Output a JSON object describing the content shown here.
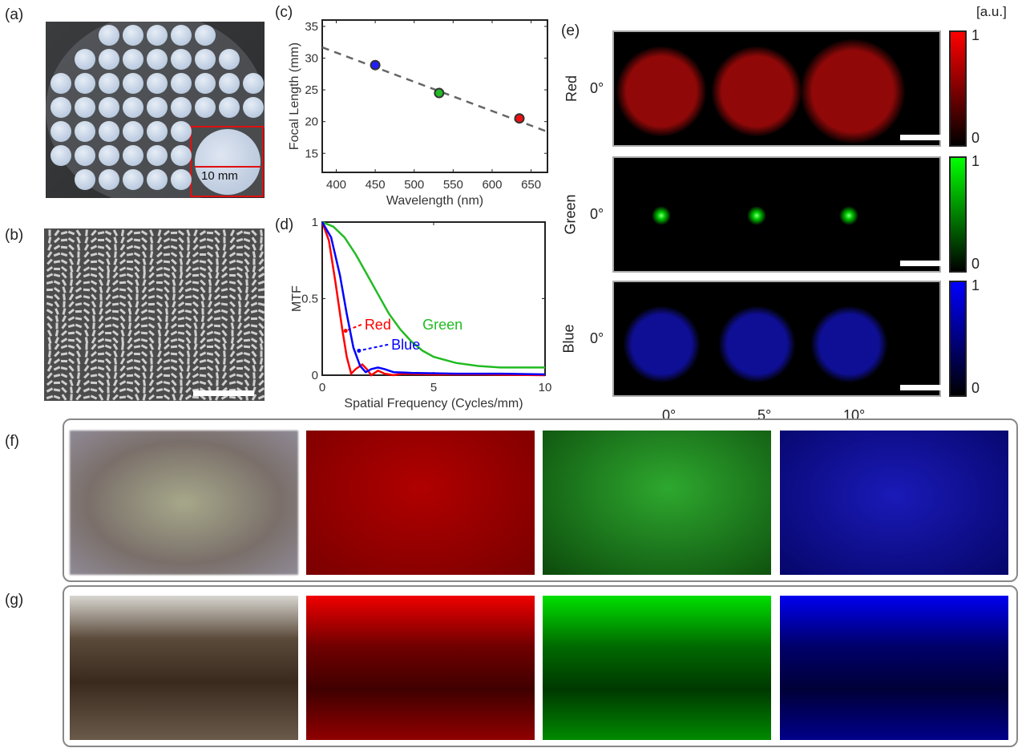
{
  "panel_labels": {
    "a": "(a)",
    "b": "(b)",
    "c": "(c)",
    "d": "(d)",
    "e": "(e)",
    "f": "(f)",
    "g": "(g)"
  },
  "panel_a": {
    "scale_text": "10 mm"
  },
  "panel_e": {
    "unit": "[a.u.]",
    "rows": [
      {
        "label": "Red",
        "angle": "0°",
        "color": "#ff0000",
        "cb_max": "1",
        "cb_min": "0"
      },
      {
        "label": "Green",
        "angle": "0°",
        "color": "#00ff00",
        "cb_max": "1",
        "cb_min": "0"
      },
      {
        "label": "Blue",
        "angle": "0°",
        "color": "#0000ff",
        "cb_max": "1",
        "cb_min": "0"
      }
    ],
    "columns": [
      "0°",
      "5°",
      "10°"
    ]
  },
  "chart_data": [
    {
      "type": "scatter",
      "title": "",
      "xlabel": "Wavelength (nm)",
      "ylabel": "Focal Length (mm)",
      "xlim": [
        382,
        671
      ],
      "ylim": [
        12,
        36
      ],
      "xticks": [
        "400",
        "450",
        "500",
        "550",
        "600",
        "650"
      ],
      "yticks": [
        "15",
        "20",
        "25",
        "30",
        "35"
      ],
      "points": [
        {
          "x": 450,
          "y": 28.9,
          "color": "#1f1fff"
        },
        {
          "x": 532,
          "y": 24.5,
          "color": "#22bb22"
        },
        {
          "x": 635,
          "y": 20.5,
          "color": "#ee1111"
        }
      ],
      "fit_line": {
        "x": [
          382,
          671
        ],
        "y": [
          31.7,
          18.4
        ],
        "style": "dashed"
      }
    },
    {
      "type": "line",
      "title": "",
      "xlabel": "Spatial Frequency (Cycles/mm)",
      "ylabel": "MTF",
      "xlim": [
        0,
        10
      ],
      "ylim": [
        0,
        1
      ],
      "xticks": [
        "0",
        "5",
        "10"
      ],
      "yticks": [
        "0",
        "0.5",
        "1"
      ],
      "series": [
        {
          "name": "Red",
          "color": "#ff0000",
          "x": [
            0,
            0.3,
            0.6,
            0.9,
            1.1,
            1.3,
            1.5,
            1.8,
            2.0,
            2.2,
            2.5,
            2.8,
            3.2,
            3.6,
            5,
            7,
            10
          ],
          "y": [
            1,
            0.88,
            0.6,
            0.3,
            0.12,
            0.01,
            0.04,
            0.07,
            0.04,
            0.0,
            0.03,
            0.01,
            0.0,
            0.01,
            0.005,
            0.005,
            0
          ],
          "label_pos": [
            1.9,
            0.33
          ]
        },
        {
          "name": "Green",
          "color": "#22bb22",
          "x": [
            0,
            0.5,
            1,
            1.5,
            2,
            2.5,
            3,
            3.5,
            4,
            4.5,
            5,
            6,
            7,
            8,
            9,
            10
          ],
          "y": [
            1,
            0.97,
            0.9,
            0.79,
            0.66,
            0.53,
            0.4,
            0.3,
            0.22,
            0.16,
            0.12,
            0.08,
            0.06,
            0.05,
            0.05,
            0.05
          ],
          "label_pos": [
            4.5,
            0.33
          ]
        },
        {
          "name": "Blue",
          "color": "#0000ff",
          "x": [
            0,
            0.4,
            0.8,
            1.1,
            1.4,
            1.7,
            1.95,
            2.2,
            2.5,
            2.8,
            3.2,
            4,
            6,
            8,
            10
          ],
          "y": [
            1,
            0.9,
            0.65,
            0.4,
            0.18,
            0.06,
            0.02,
            0.04,
            0.05,
            0.04,
            0.02,
            0.015,
            0.01,
            0.01,
            0.005
          ],
          "label_pos": [
            3.1,
            0.2
          ]
        }
      ]
    }
  ]
}
